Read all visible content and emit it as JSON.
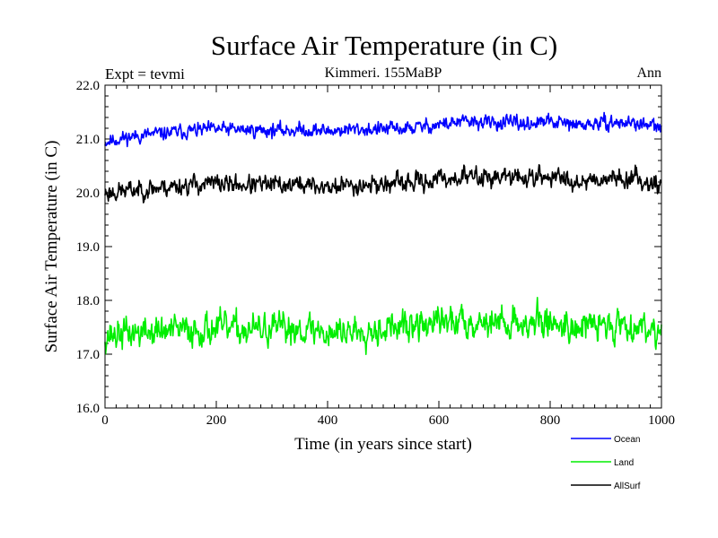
{
  "title": "Surface Air Temperature (in C)",
  "header_left": "Expt = tevmi",
  "header_center": "Kimmeri. 155MaBP",
  "header_right": "Ann",
  "chart_data": {
    "type": "line",
    "title": "Surface Air Temperature (in C)",
    "xlabel": "Time (in years since start)",
    "ylabel": "Surface Air Temperature (in C)",
    "xlim": [
      0,
      1000
    ],
    "ylim": [
      16.0,
      22.0
    ],
    "x_ticks": [
      0,
      200,
      400,
      600,
      800,
      1000
    ],
    "x_tick_labels": [
      "0",
      "200",
      "400",
      "600",
      "800",
      "1000"
    ],
    "y_ticks": [
      16.0,
      17.0,
      18.0,
      19.0,
      20.0,
      21.0,
      22.0
    ],
    "y_tick_labels": [
      "16.0",
      "17.0",
      "18.0",
      "19.0",
      "20.0",
      "21.0",
      "22.0"
    ],
    "grid": false,
    "legend_position": "bottom-right, below plot",
    "series": [
      {
        "name": "Ocean",
        "color": "#0000ff",
        "x": [
          0,
          50,
          100,
          150,
          200,
          250,
          300,
          350,
          400,
          450,
          500,
          550,
          600,
          650,
          700,
          750,
          800,
          850,
          900,
          950,
          1000
        ],
        "values": [
          20.95,
          21.05,
          21.1,
          21.15,
          21.18,
          21.17,
          21.16,
          21.17,
          21.15,
          21.18,
          21.18,
          21.2,
          21.27,
          21.32,
          21.3,
          21.28,
          21.32,
          21.25,
          21.3,
          21.3,
          21.2
        ],
        "noise": 0.09,
        "seed": 11
      },
      {
        "name": "AllSurf",
        "color": "#000000",
        "x": [
          0,
          50,
          100,
          150,
          200,
          250,
          300,
          350,
          400,
          450,
          500,
          550,
          600,
          650,
          700,
          750,
          800,
          850,
          900,
          950,
          1000
        ],
        "values": [
          20.0,
          20.05,
          20.1,
          20.15,
          20.17,
          20.15,
          20.14,
          20.16,
          20.1,
          20.15,
          20.16,
          20.18,
          20.25,
          20.3,
          20.3,
          20.28,
          20.3,
          20.22,
          20.28,
          20.27,
          20.15
        ],
        "noise": 0.12,
        "seed": 23
      },
      {
        "name": "Land",
        "color": "#00ee00",
        "x": [
          0,
          50,
          100,
          150,
          200,
          250,
          300,
          350,
          400,
          450,
          500,
          550,
          600,
          650,
          700,
          750,
          800,
          850,
          900,
          950,
          1000
        ],
        "values": [
          17.35,
          17.4,
          17.42,
          17.45,
          17.48,
          17.45,
          17.45,
          17.5,
          17.4,
          17.45,
          17.5,
          17.5,
          17.6,
          17.62,
          17.6,
          17.58,
          17.6,
          17.5,
          17.55,
          17.55,
          17.45
        ],
        "noise": 0.2,
        "seed": 37
      }
    ]
  }
}
